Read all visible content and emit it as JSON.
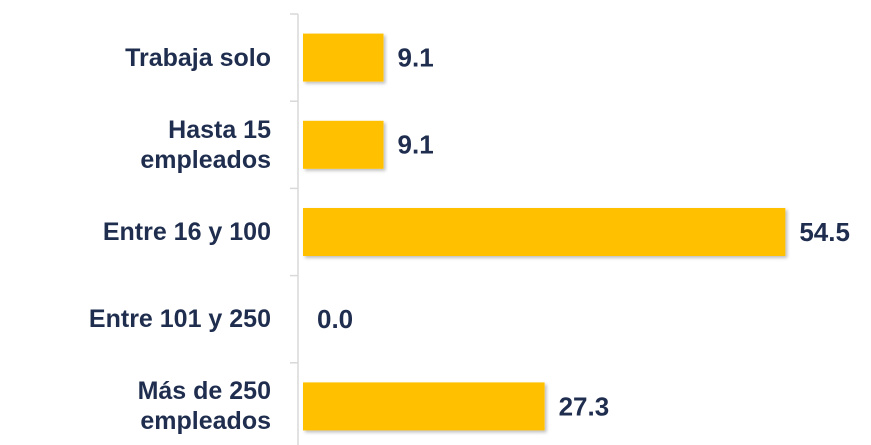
{
  "chart_data": {
    "type": "bar",
    "orientation": "horizontal",
    "categories": [
      "Trabaja solo",
      "Hasta 15\nempleados",
      "Entre 16 y 100",
      "Entre 101 y 250",
      "Más de 250\nempleados"
    ],
    "values": [
      9.1,
      9.1,
      54.5,
      0.0,
      27.3
    ],
    "value_labels": [
      "9.1",
      "9.1",
      "54.5",
      "0.0",
      "27.3"
    ],
    "color": "#ffc000"
  }
}
